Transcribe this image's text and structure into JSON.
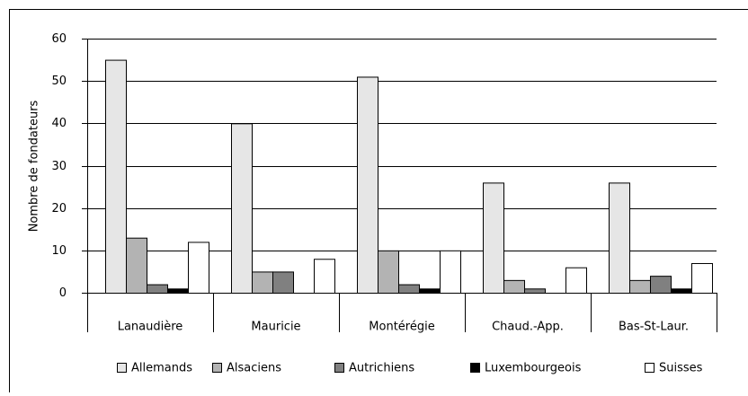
{
  "chart_data": {
    "type": "bar",
    "y_label": "Nombre de fondateurs",
    "categories": [
      "Lanaudière",
      "Mauricie",
      "Montérégie",
      "Chaud.-App.",
      "Bas-St-Laur."
    ],
    "series": [
      {
        "name": "Allemands",
        "color": "#e6e6e6",
        "values": [
          55,
          40,
          51,
          26,
          26
        ]
      },
      {
        "name": "Alsaciens",
        "color": "#b3b3b3",
        "values": [
          13,
          5,
          10,
          3,
          3
        ]
      },
      {
        "name": "Autrichiens",
        "color": "#808080",
        "values": [
          2,
          5,
          2,
          1,
          4
        ]
      },
      {
        "name": "Luxembourgeois",
        "color": "#000000",
        "values": [
          1,
          0,
          1,
          0,
          1
        ]
      },
      {
        "name": "Suisses",
        "color": "#ffffff",
        "values": [
          12,
          8,
          10,
          6,
          7
        ]
      }
    ],
    "ylim": [
      0,
      60
    ],
    "yticks": [
      0,
      10,
      20,
      30,
      40,
      50,
      60
    ],
    "grid": true,
    "legend": "bottom"
  }
}
